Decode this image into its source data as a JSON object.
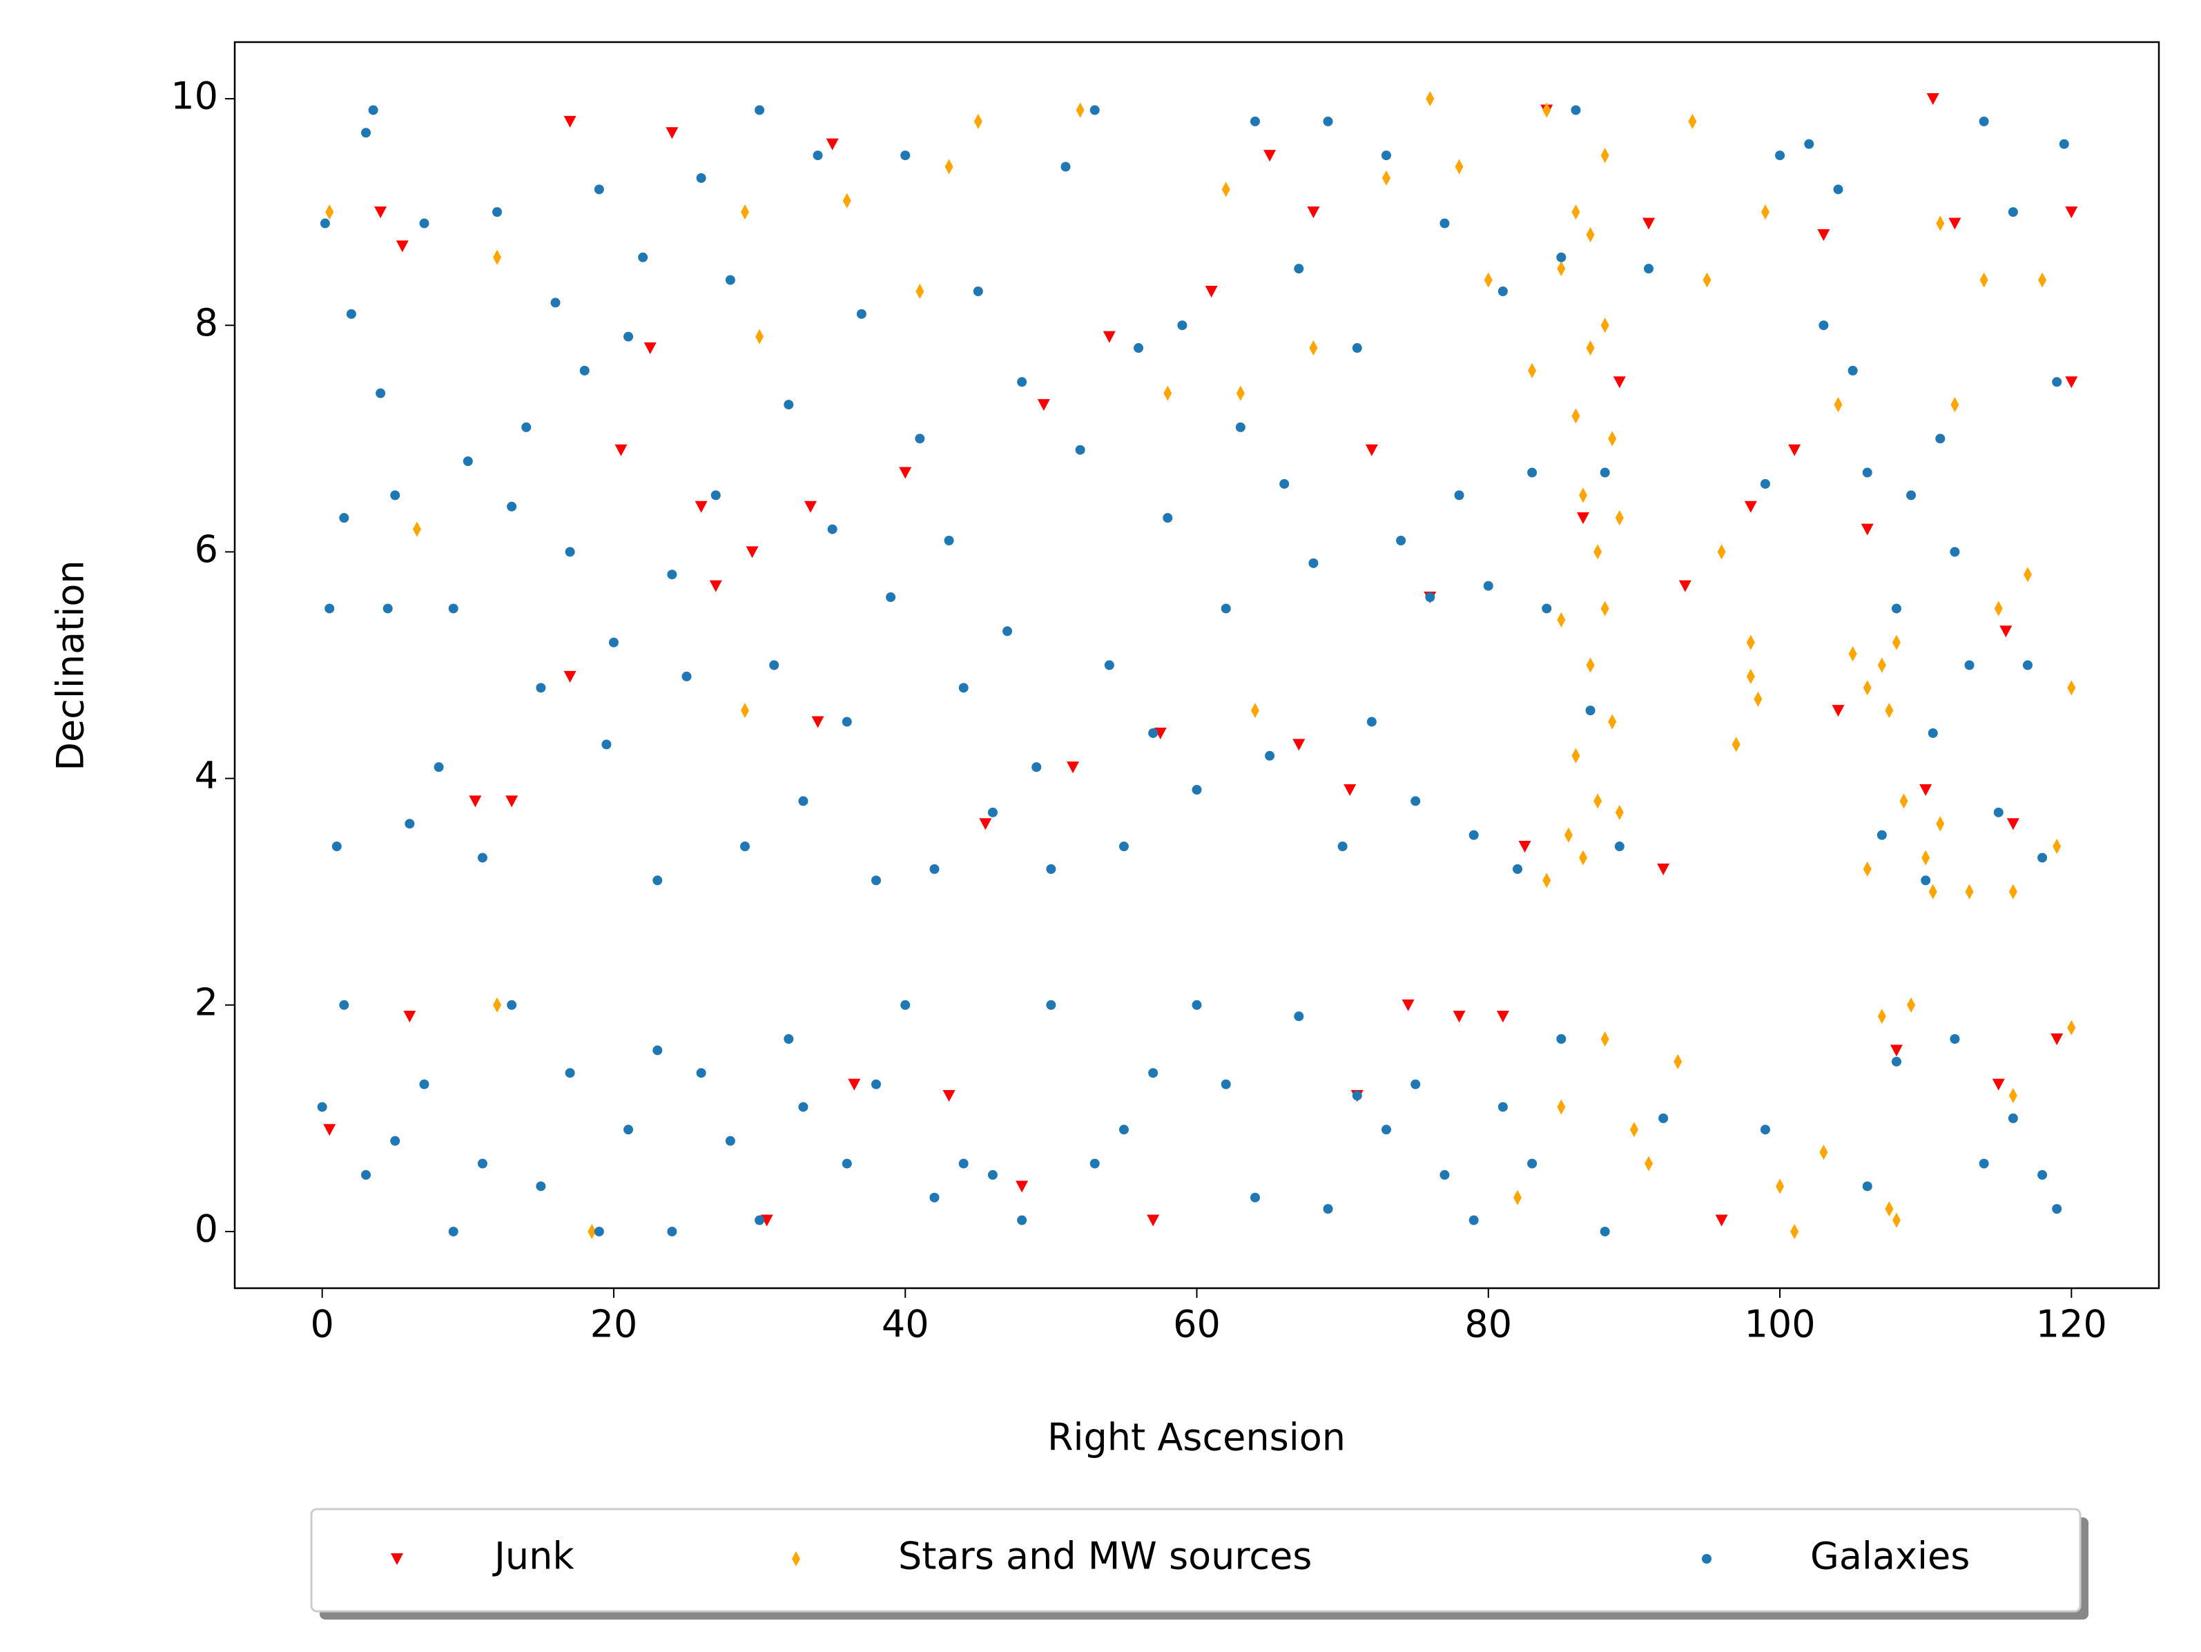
{
  "chart_data": {
    "type": "scatter",
    "x_label": "Right Ascension",
    "y_label": "Declination",
    "xlim": [
      -6,
      126
    ],
    "ylim": [
      -0.5,
      10.5
    ],
    "xticks": [
      0,
      20,
      40,
      60,
      80,
      100,
      120
    ],
    "yticks": [
      0,
      2,
      4,
      6,
      8,
      10
    ],
    "series": [
      {
        "name": "Junk",
        "color": "#ff0000",
        "marker": "v",
        "x": [
          0.5,
          4,
          5.5,
          6,
          10.5,
          13,
          17,
          17,
          20.5,
          22.5,
          24,
          26,
          27,
          29.5,
          30.5,
          33.5,
          34,
          35,
          36.5,
          40,
          43,
          45.5,
          48,
          49.5,
          51.5,
          54,
          57,
          57.5,
          61,
          65,
          67,
          68,
          70.5,
          71,
          72,
          74.5,
          76,
          78,
          81,
          82.5,
          84,
          86.5,
          89,
          91,
          92,
          93.5,
          96,
          98,
          101,
          103,
          104,
          106,
          108,
          110,
          110.5,
          112,
          115,
          115.5,
          116,
          119,
          120,
          120
        ],
        "y": [
          0.9,
          9.0,
          8.7,
          1.9,
          3.8,
          3.8,
          4.9,
          9.8,
          6.9,
          7.8,
          9.7,
          6.4,
          5.7,
          6.0,
          0.1,
          6.4,
          4.5,
          9.6,
          1.3,
          6.7,
          1.2,
          3.6,
          0.4,
          7.3,
          4.1,
          7.9,
          0.1,
          4.4,
          8.3,
          9.5,
          4.3,
          9.0,
          3.9,
          1.2,
          6.9,
          2.0,
          5.6,
          1.9,
          1.9,
          3.4,
          9.9,
          6.3,
          7.5,
          8.9,
          3.2,
          5.7,
          0.1,
          6.4,
          6.9,
          8.8,
          4.6,
          6.2,
          1.6,
          3.9,
          10.0,
          8.9,
          1.3,
          5.3,
          3.6,
          1.7,
          7.5,
          9.0
        ]
      },
      {
        "name": "Stars and MW sources",
        "color": "#ffa500",
        "marker": "d",
        "x": [
          0.5,
          6.5,
          12,
          12,
          18.5,
          29,
          30,
          29,
          36,
          41,
          43,
          45,
          52,
          58,
          62,
          63,
          64,
          68,
          73,
          76,
          78,
          80,
          82,
          83,
          84,
          84,
          85,
          85,
          85.5,
          86,
          86,
          86,
          86.5,
          86.5,
          87,
          87,
          87,
          87.5,
          87.5,
          88,
          88,
          88,
          88.5,
          88.5,
          89,
          89,
          85,
          88,
          90,
          91,
          93,
          94,
          95,
          96,
          97,
          98,
          98,
          98.5,
          99,
          100,
          101,
          103,
          104,
          105,
          106,
          106,
          107,
          107,
          107.5,
          107.5,
          108,
          108,
          108.5,
          109,
          110,
          110.5,
          111,
          111,
          112,
          113,
          114,
          115,
          116,
          116,
          117,
          118,
          119,
          120,
          120
        ],
        "y": [
          9.0,
          6.2,
          8.6,
          2.0,
          0,
          9.0,
          7.9,
          4.6,
          9.1,
          8.3,
          9.4,
          9.8,
          9.9,
          7.4,
          9.2,
          7.4,
          4.6,
          7.8,
          9.3,
          10.0,
          9.4,
          8.4,
          0.3,
          7.6,
          3.1,
          9.9,
          8.5,
          5.4,
          3.5,
          9.0,
          7.2,
          4.2,
          6.5,
          3.3,
          8.8,
          5.0,
          7.8,
          6.0,
          3.8,
          9.5,
          8.0,
          5.5,
          4.5,
          7.0,
          6.3,
          3.7,
          1.1,
          1.7,
          0.9,
          0.6,
          1.5,
          9.8,
          8.4,
          6.0,
          4.3,
          5.2,
          4.9,
          4.7,
          9.0,
          0.4,
          0,
          0.7,
          7.3,
          5.1,
          3.2,
          4.8,
          5.0,
          1.9,
          4.6,
          0.2,
          5.2,
          0.1,
          3.8,
          2.0,
          3.3,
          3.0,
          3.6,
          8.9,
          7.3,
          3.0,
          8.4,
          5.5,
          3.0,
          1.2,
          5.8,
          8.4,
          3.4,
          4.8,
          1.8
        ]
      },
      {
        "name": "Galaxies",
        "color": "#1f77b4",
        "marker": "o",
        "x": [
          0.2,
          0.5,
          1,
          1.5,
          2,
          3,
          3.5,
          4,
          4.5,
          5,
          6,
          7,
          8,
          9,
          10,
          11,
          12,
          13,
          14,
          15,
          16,
          17,
          18,
          19,
          19.5,
          20,
          21,
          22,
          23,
          24,
          25,
          26,
          27,
          28,
          29,
          30,
          31,
          32,
          33,
          34,
          35,
          36,
          37,
          38,
          39,
          40,
          41,
          42,
          43,
          44,
          45,
          46,
          47,
          48,
          49,
          50,
          51,
          52,
          53,
          54,
          55,
          56,
          57,
          58,
          59,
          60,
          62,
          63,
          64,
          65,
          66,
          67,
          68,
          69,
          70,
          71,
          72,
          73,
          74,
          75,
          76,
          77,
          78,
          79,
          80,
          81,
          82,
          83,
          84,
          85,
          86,
          87,
          88,
          89,
          91,
          99,
          100,
          102,
          103,
          104,
          105,
          106,
          107,
          108,
          109,
          110,
          110.5,
          111,
          112,
          113,
          114,
          115,
          116,
          117,
          118,
          119,
          119.5,
          0,
          1.5,
          3,
          5,
          7,
          9,
          11,
          13,
          15,
          17,
          19,
          21,
          23,
          24,
          26,
          28,
          30,
          32,
          33,
          36,
          38,
          40,
          42,
          44,
          46,
          48,
          50,
          53,
          55,
          57,
          60,
          62,
          64,
          67,
          69,
          71,
          73,
          75,
          77,
          79,
          81,
          83,
          85,
          88,
          92,
          99,
          106,
          108,
          112,
          114,
          116,
          118,
          119
        ],
        "y": [
          8.9,
          5.5,
          3.4,
          6.3,
          8.1,
          9.7,
          9.9,
          7.4,
          5.5,
          6.5,
          3.6,
          8.9,
          4.1,
          5.5,
          6.8,
          3.3,
          9.0,
          6.4,
          7.1,
          4.8,
          8.2,
          6.0,
          7.6,
          9.2,
          4.3,
          5.2,
          7.9,
          8.6,
          3.1,
          5.8,
          4.9,
          9.3,
          6.5,
          8.4,
          3.4,
          9.9,
          5.0,
          7.3,
          3.8,
          9.5,
          6.2,
          4.5,
          8.1,
          3.1,
          5.6,
          9.5,
          7.0,
          3.2,
          6.1,
          4.8,
          8.3,
          3.7,
          5.3,
          7.5,
          4.1,
          3.2,
          9.4,
          6.9,
          9.9,
          5.0,
          3.4,
          7.8,
          4.4,
          6.3,
          8.0,
          3.9,
          5.5,
          7.1,
          9.8,
          4.2,
          6.6,
          8.5,
          5.9,
          9.8,
          3.4,
          7.8,
          4.5,
          9.5,
          6.1,
          3.8,
          5.6,
          8.9,
          6.5,
          3.5,
          5.7,
          8.3,
          3.2,
          6.7,
          5.5,
          8.6,
          9.9,
          4.6,
          6.7,
          3.4,
          8.5,
          6.6,
          9.5,
          9.6,
          8.0,
          9.2,
          7.6,
          6.7,
          3.5,
          5.5,
          6.5,
          3.1,
          4.4,
          7.0,
          6.0,
          5.0,
          9.8,
          3.7,
          9.0,
          5.0,
          3.3,
          7.5,
          9.6,
          1.1,
          2.0,
          0.5,
          0.8,
          1.3,
          0,
          0.6,
          2.0,
          0.4,
          1.4,
          0,
          0.9,
          1.6,
          0,
          1.4,
          0.8,
          0.1,
          1.7,
          1.1,
          0.6,
          1.3,
          2.0,
          0.3,
          0.6,
          0.5,
          0.1,
          2.0,
          0.6,
          0.9,
          1.4,
          2.0,
          1.3,
          0.3,
          1.9,
          0.2,
          1.2,
          0.9,
          1.3,
          0.5,
          0.1,
          1.1,
          0.6,
          1.7,
          0,
          1.0,
          0.9,
          0.4,
          1.5,
          1.7,
          0.6,
          1.0,
          0.5,
          0.2
        ]
      }
    ]
  }
}
